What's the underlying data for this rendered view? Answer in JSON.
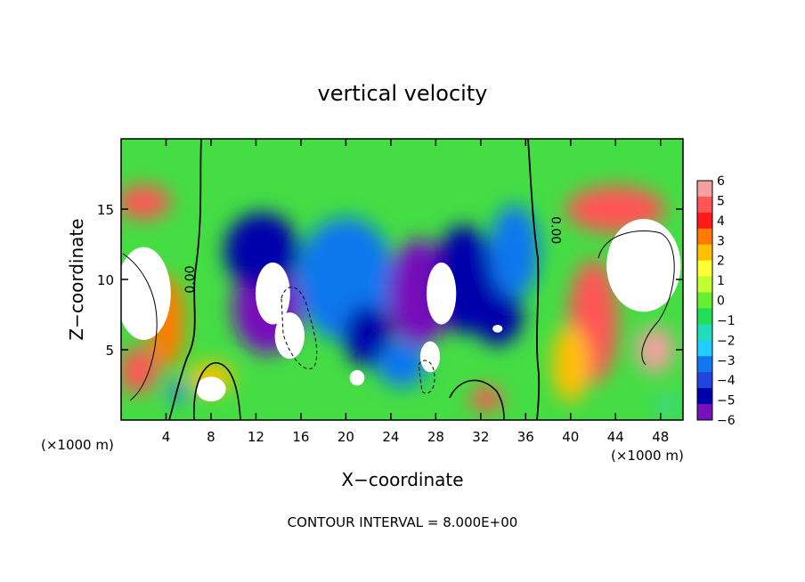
{
  "chart_data": {
    "type": "heatmap",
    "title": "vertical velocity",
    "xlabel": "X−coordinate",
    "ylabel": "Z−coordinate",
    "x_unit_left": "(×1000 m)",
    "x_unit_right": "(×1000 m)",
    "footer": "CONTOUR INTERVAL = 8.000E+00",
    "xlim": [
      0,
      50
    ],
    "ylim": [
      0,
      20
    ],
    "x_ticks": [
      4,
      8,
      12,
      16,
      20,
      24,
      28,
      32,
      36,
      40,
      44,
      48
    ],
    "y_ticks": [
      5,
      10,
      15
    ],
    "colorbar": {
      "ticks": [
        6,
        5,
        4,
        3,
        2,
        1,
        0,
        -1,
        -2,
        -3,
        -4,
        -5,
        -6
      ],
      "tick_labels": [
        "6",
        "5",
        "4",
        "3",
        "2",
        "1",
        "0",
        "−1",
        "−2",
        "−3",
        "−4",
        "−5",
        "−6"
      ],
      "colors": [
        "#f4a0a0",
        "#ff5555",
        "#ff1a1a",
        "#ff7a00",
        "#ffc000",
        "#ffff33",
        "#c0ff30",
        "#66ee33",
        "#22dd55",
        "#22ddbb",
        "#22ccff",
        "#1177ee",
        "#2244dd",
        "#0000aa",
        "#7711bb"
      ]
    },
    "contour_labels": [
      {
        "text": "0.00",
        "x": 6.5,
        "z": 10
      },
      {
        "text": "0.00",
        "x": 38.3,
        "z": 13.5
      }
    ],
    "cells": [
      {
        "x": 2.0,
        "z": 9.0,
        "v": 6.5,
        "w": 2.2,
        "h": 6
      },
      {
        "x": 2.0,
        "z": 15.5,
        "v": 5.0,
        "w": 2.2,
        "h": 2.2
      },
      {
        "x": 1.5,
        "z": 3.5,
        "v": 4.5,
        "w": 1.5,
        "h": 3
      },
      {
        "x": 4.0,
        "z": 7.0,
        "v": 3.0,
        "w": 1.5,
        "h": 6
      },
      {
        "x": 8.0,
        "z": 2.2,
        "v": 6.5,
        "w": 1.2,
        "h": 1.6
      },
      {
        "x": 8.0,
        "z": 3.0,
        "v": 2.5,
        "w": 1.8,
        "h": 2.0
      },
      {
        "x": 5.0,
        "z": 2.0,
        "v": -3.0,
        "w": 0.8,
        "h": 1.2
      },
      {
        "x": 13.5,
        "z": 9.0,
        "v": 6.5,
        "w": 1.4,
        "h": 4
      },
      {
        "x": 15.0,
        "z": 6.0,
        "v": 6.5,
        "w": 1.2,
        "h": 3
      },
      {
        "x": 13.0,
        "z": 8.0,
        "v": -5.5,
        "w": 2.8,
        "h": 6
      },
      {
        "x": 12.5,
        "z": 12.0,
        "v": -4.5,
        "w": 3.0,
        "h": 5
      },
      {
        "x": 20.0,
        "z": 10.0,
        "v": -3.5,
        "w": 4.0,
        "h": 8
      },
      {
        "x": 21.0,
        "z": 3.0,
        "v": 6.5,
        "w": 0.6,
        "h": 1.0
      },
      {
        "x": 22.0,
        "z": 6.0,
        "v": -4.5,
        "w": 2.0,
        "h": 4
      },
      {
        "x": 28.5,
        "z": 9.0,
        "v": 6.5,
        "w": 1.2,
        "h": 4
      },
      {
        "x": 27.5,
        "z": 4.5,
        "v": 6.5,
        "w": 0.8,
        "h": 2
      },
      {
        "x": 26.5,
        "z": 9.0,
        "v": -5.5,
        "w": 2.5,
        "h": 7
      },
      {
        "x": 30.5,
        "z": 10.0,
        "v": -4.5,
        "w": 2.5,
        "h": 7
      },
      {
        "x": 33.5,
        "z": 7.5,
        "v": -5.0,
        "w": 2.0,
        "h": 4
      },
      {
        "x": 33.5,
        "z": 6.5,
        "v": 6.5,
        "w": 0.4,
        "h": 0.5
      },
      {
        "x": 32.5,
        "z": 1.5,
        "v": 4.5,
        "w": 1.3,
        "h": 1.6
      },
      {
        "x": 25.0,
        "z": 4.0,
        "v": -3.0,
        "w": 2.0,
        "h": 3
      },
      {
        "x": 35.0,
        "z": 12.0,
        "v": -3.0,
        "w": 2.0,
        "h": 6
      },
      {
        "x": 46.5,
        "z": 11.0,
        "v": 6.5,
        "w": 3.0,
        "h": 6
      },
      {
        "x": 47.5,
        "z": 5.0,
        "v": 6.0,
        "w": 1.5,
        "h": 3
      },
      {
        "x": 44.0,
        "z": 15.0,
        "v": 4.5,
        "w": 4.0,
        "h": 3
      },
      {
        "x": 42.0,
        "z": 7.0,
        "v": 4.5,
        "w": 2.0,
        "h": 8
      },
      {
        "x": 40.0,
        "z": 4.0,
        "v": 2.5,
        "w": 1.5,
        "h": 5
      },
      {
        "x": 48.5,
        "z": 1.0,
        "v": -2.0,
        "w": 0.5,
        "h": 1.0
      }
    ]
  }
}
